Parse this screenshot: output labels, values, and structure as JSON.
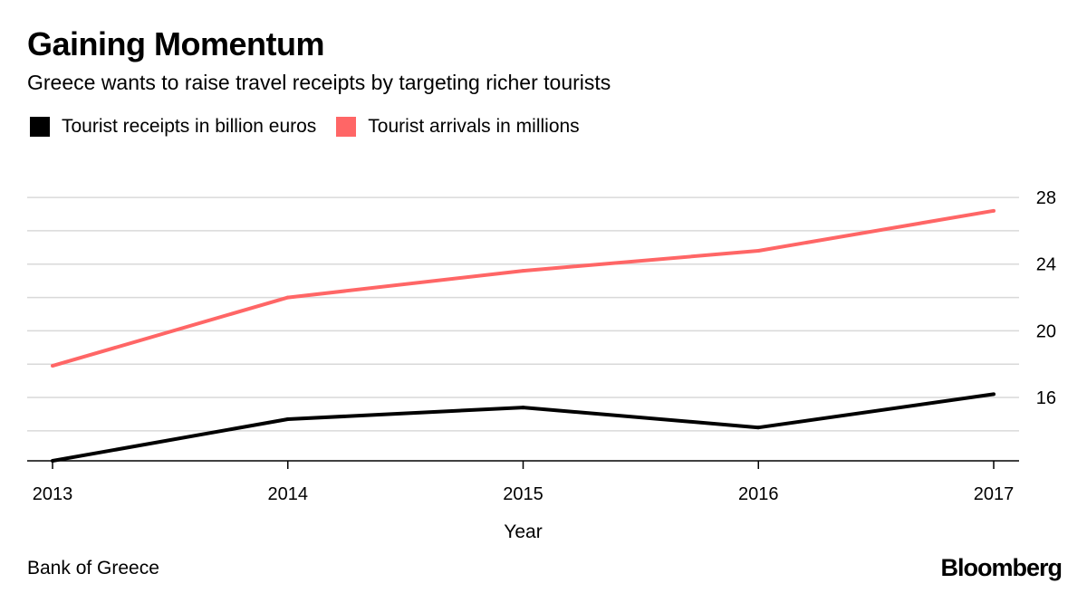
{
  "chart_data": {
    "type": "line",
    "title": "Gaining Momentum",
    "subtitle": "Greece wants to raise travel receipts by targeting richer tourists",
    "xlabel": "Year",
    "ylabel": "",
    "x": [
      2013,
      2014,
      2015,
      2016,
      2017
    ],
    "series": [
      {
        "name": "Tourist receipts in billion euros",
        "color": "#000000",
        "values": [
          12.2,
          14.7,
          15.4,
          14.2,
          16.2
        ]
      },
      {
        "name": "Tourist arrivals in millions",
        "color": "#ff6666",
        "values": [
          17.9,
          22.0,
          23.6,
          24.8,
          27.2
        ]
      }
    ],
    "ylim": [
      12.2,
      29.2
    ],
    "y_ticks": [
      16,
      20,
      24,
      28
    ],
    "y_minor_gridlines": [
      14,
      18,
      22,
      26
    ],
    "y_axis_position": "right",
    "grid": true,
    "legend_position": "top-left"
  },
  "source": "Bank of Greece",
  "logo": "Bloomberg"
}
